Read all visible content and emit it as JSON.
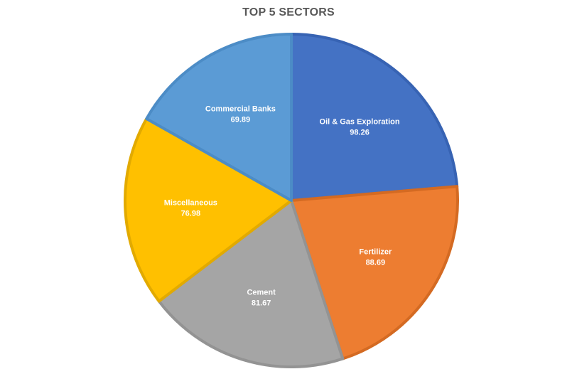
{
  "chart_data": {
    "type": "pie",
    "title": "TOP 5 SECTORS",
    "categories": [
      "Oil & Gas Exploration",
      "Fertilizer",
      "Cement",
      "Miscellaneous",
      "Commercial Banks"
    ],
    "values": [
      98.26,
      88.69,
      81.67,
      76.98,
      69.89
    ],
    "value_labels": [
      "98.26",
      "88.69",
      "81.67",
      "76.98",
      "69.89"
    ],
    "colors": [
      "#4472C4",
      "#ED7D31",
      "#A5A5A5",
      "#FFC000",
      "#5B9BD5"
    ],
    "border_colors": [
      "#3763B3",
      "#D46A22",
      "#939393",
      "#E2AA00",
      "#4C8CC6"
    ],
    "start": "12 o'clock",
    "direction": "clockwise",
    "legend": "none",
    "data_labels": "category and value inside slices"
  }
}
